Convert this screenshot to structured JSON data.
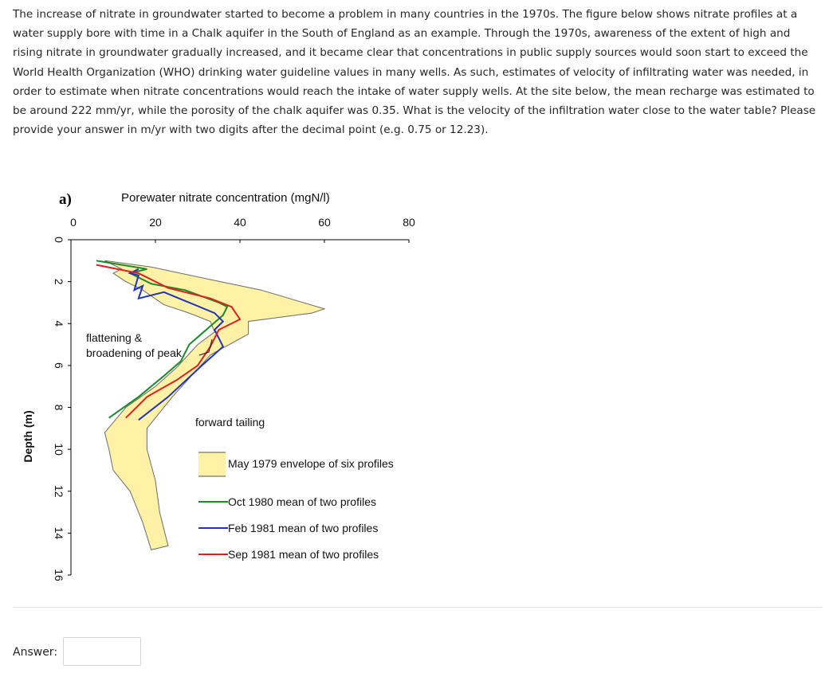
{
  "question": {
    "text": "The increase of nitrate in groundwater started to become a problem in many countries in the 1970s. The figure below shows nitrate profiles at a water supply bore with time in a Chalk aquifer in the South of England as an example. Through the 1970s, awareness of the extent of high and rising nitrate in groundwater gradually increased, and it became clear that concentrations in public supply sources would soon start to exceed the World Health Organization (WHO) drinking water guideline values in many wells. As such, estimates of velocity of infiltrating water was needed, in order to estimate when nitrate concentrations would reach the intake of water supply wells. At the site below, the mean recharge was estimated to be around 222 mm/yr, while the porosity of the chalk aquifer was 0.35. What is the velocity of the infiltration water close to the water table? Please provide your answer in m/yr with two digits after the decimal point (e.g. 0.75 or 12.23)."
  },
  "figure": {
    "panel_label": "a)",
    "x_title": "Porewater nitrate concentration (mgN/l)",
    "y_title": "Depth (m)",
    "x_ticks": [
      "0",
      "20",
      "40",
      "60",
      "80"
    ],
    "y_ticks": [
      "0",
      "2",
      "4",
      "6",
      "8",
      "10",
      "12",
      "14",
      "16"
    ],
    "annotation_flattening_line1": "flattening &",
    "annotation_flattening_line2": "broadening of peak",
    "annotation_tailing": "forward tailing",
    "legend": [
      {
        "label": "May 1979 envelope of six profiles",
        "color": "#fff2a6"
      },
      {
        "label": "Oct 1980 mean of two profiles",
        "color": "#1a8a2a"
      },
      {
        "label": "Feb 1981 mean of two profiles",
        "color": "#2233bb"
      },
      {
        "label": "Sep 1981 mean of two profiles",
        "color": "#e02020"
      }
    ]
  },
  "chart_data": {
    "type": "line",
    "xlabel": "Porewater nitrate concentration (mgN/l)",
    "ylabel": "Depth (m)",
    "xlim": [
      0,
      80
    ],
    "ylim": [
      16,
      0
    ],
    "grid": false,
    "legend_position": "bottom-right",
    "envelope": {
      "name": "May 1979 envelope of six profiles",
      "left": [
        [
          8,
          1.0
        ],
        [
          12,
          1.4
        ],
        [
          10,
          1.6
        ],
        [
          13,
          2.0
        ],
        [
          17,
          2.4
        ],
        [
          22,
          3.1
        ],
        [
          28,
          3.5
        ],
        [
          33,
          3.9
        ],
        [
          34,
          4.4
        ],
        [
          30,
          5.0
        ],
        [
          25,
          6.1
        ],
        [
          20,
          7.0
        ],
        [
          13,
          8.0
        ],
        [
          8,
          9.2
        ],
        [
          9,
          10.0
        ],
        [
          10,
          11.0
        ],
        [
          14,
          12.0
        ],
        [
          17,
          13.5
        ],
        [
          19,
          14.8
        ]
      ],
      "right": [
        [
          19,
          1.3
        ],
        [
          33,
          1.9
        ],
        [
          45,
          2.4
        ],
        [
          60,
          3.3
        ],
        [
          57,
          3.5
        ],
        [
          42,
          3.9
        ],
        [
          42,
          4.5
        ],
        [
          33,
          5.5
        ],
        [
          24,
          7.5
        ],
        [
          18,
          9.0
        ],
        [
          18,
          10.0
        ],
        [
          20,
          11.5
        ],
        [
          21,
          13.0
        ],
        [
          23,
          14.6
        ]
      ]
    },
    "series": [
      {
        "name": "Oct 1980 mean of two profiles",
        "points": [
          [
            6,
            1.0
          ],
          [
            18,
            1.4
          ],
          [
            14,
            1.6
          ],
          [
            19,
            2.1
          ],
          [
            27,
            2.4
          ],
          [
            35,
            3.0
          ],
          [
            37,
            3.2
          ],
          [
            36,
            3.6
          ],
          [
            32,
            4.3
          ],
          [
            28,
            5.0
          ],
          [
            26,
            5.8
          ],
          [
            22,
            6.5
          ],
          [
            16,
            7.5
          ],
          [
            9,
            8.5
          ]
        ]
      },
      {
        "name": "Feb 1981 mean of two profiles",
        "points": [
          [
            16,
            1.4
          ],
          [
            14,
            1.6
          ],
          [
            16,
            1.7
          ],
          [
            15,
            2.4
          ],
          [
            17,
            2.2
          ],
          [
            16,
            2.8
          ],
          [
            22,
            2.5
          ],
          [
            28,
            3.0
          ],
          [
            34,
            3.5
          ],
          [
            36,
            3.9
          ],
          [
            34,
            4.3
          ],
          [
            36,
            5.1
          ],
          [
            31,
            6.0
          ],
          [
            23,
            7.5
          ],
          [
            16,
            8.6
          ]
        ]
      },
      {
        "name": "Sep 1981 mean of two profiles",
        "points": [
          [
            6,
            1.2
          ],
          [
            16,
            1.6
          ],
          [
            23,
            2.3
          ],
          [
            33,
            2.8
          ],
          [
            38,
            3.2
          ],
          [
            40,
            3.8
          ],
          [
            35,
            4.3
          ],
          [
            33,
            5.1
          ],
          [
            30,
            6.0
          ],
          [
            25,
            6.7
          ],
          [
            18,
            7.5
          ],
          [
            13,
            8.5
          ]
        ]
      }
    ]
  },
  "answer": {
    "label": "Answer:",
    "value": "",
    "placeholder": ""
  }
}
